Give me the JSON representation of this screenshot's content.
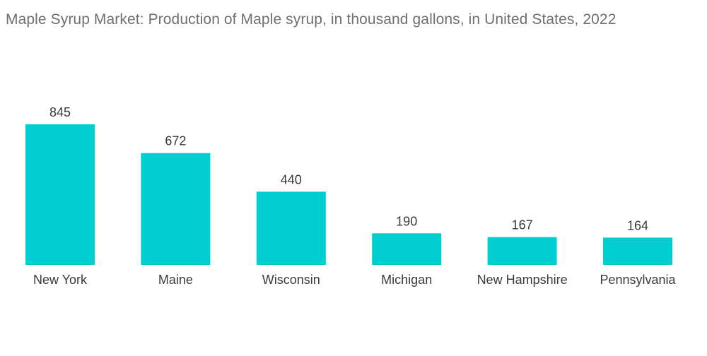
{
  "chart_data": {
    "type": "bar",
    "title": "Maple Syrup Market: Production of Maple syrup, in thousand gallons, in United States, 2022",
    "categories": [
      "New York",
      "Maine",
      "Wisconsin",
      "Michigan",
      "New Hampshire",
      "Pennsylvania"
    ],
    "values": [
      845,
      672,
      440,
      190,
      167,
      164
    ],
    "xlabel": "",
    "ylabel": "",
    "ylim": [
      0,
      950
    ],
    "grid": false,
    "legend": "none",
    "bar_color": "#00ced1"
  }
}
